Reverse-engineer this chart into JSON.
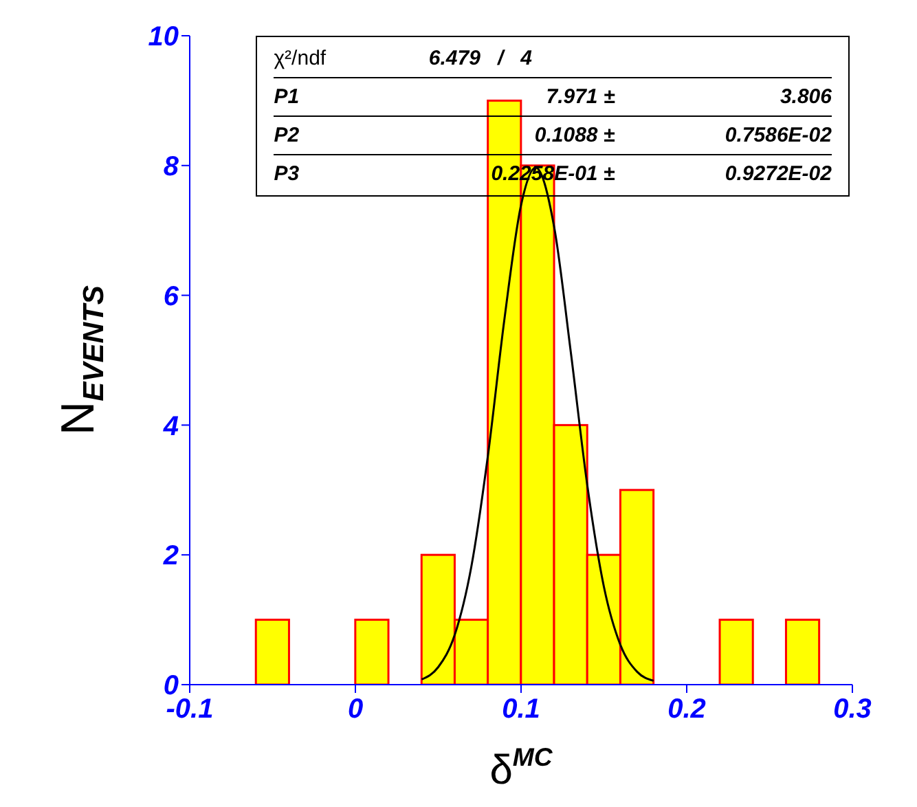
{
  "chart_data": {
    "type": "histogram",
    "xlabel": "δ$^{MC}$",
    "ylabel": "N$_{EVENTS}$",
    "bins": [
      -0.06,
      -0.04,
      -0.02,
      0,
      0.02,
      0.04,
      0.06,
      0.08,
      0.1,
      0.12,
      0.14,
      0.16,
      0.18,
      0.2,
      0.22,
      0.24,
      0.26,
      0.28
    ],
    "values": [
      1,
      0,
      0,
      1,
      0,
      2,
      1,
      9,
      8,
      4,
      2,
      3,
      0,
      0,
      1,
      0,
      1
    ],
    "color": "#ffff00",
    "series": [
      {
        "type": "line",
        "color": "#000000",
        "x": [
          0.04,
          0.05,
          0.06,
          0.07,
          0.08,
          0.09,
          0.1,
          0.1088,
          0.12,
          0.13,
          0.14,
          0.15,
          0.16,
          0.17,
          0.18
        ],
        "values": [
          0.08,
          0.27,
          0.77,
          1.82,
          3.53,
          5.64,
          7.39,
          7.97,
          7.05,
          5.13,
          3.07,
          1.51,
          0.61,
          0.2,
          0.06
        ]
      }
    ],
    "xlim": [
      -0.1,
      0.3
    ],
    "xticks": [
      -0.1,
      0,
      0.1,
      0.2,
      0.3
    ],
    "ylim": [
      0,
      10
    ],
    "yticks": [
      0,
      2,
      4,
      6,
      8,
      10
    ],
    "grid": false,
    "legend": false,
    "annotations": [
      "χ²/ndf",
      "6.479   /   4",
      "P1",
      "7.971 ±",
      "3.806",
      "P2",
      "0.1088 ±",
      "0.7586E-02",
      "P3",
      "0.2258E-01 ±",
      "0.9272E-02"
    ]
  }
}
